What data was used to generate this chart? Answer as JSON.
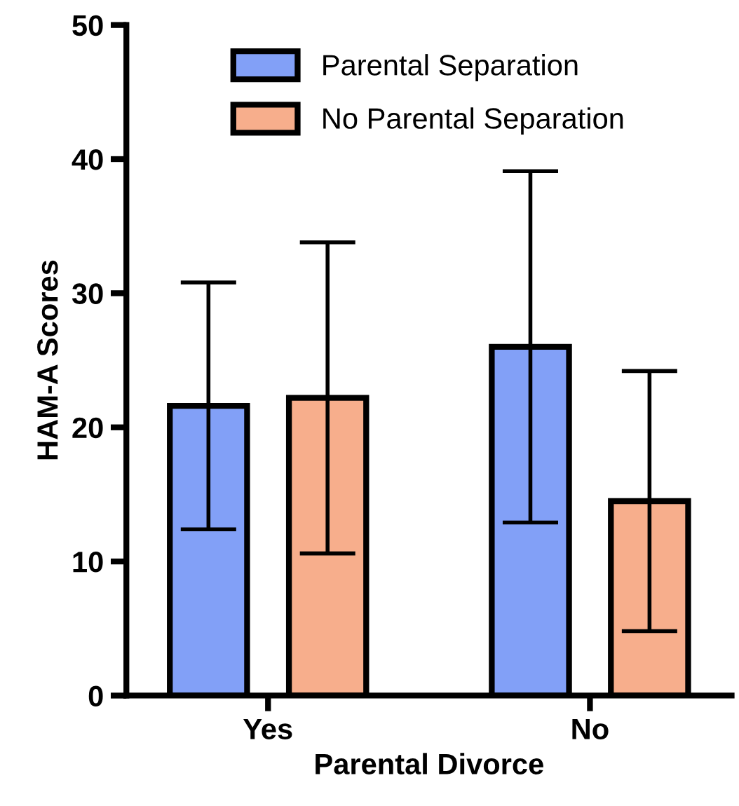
{
  "chart_data": {
    "type": "bar",
    "xlabel": "Parental Divorce",
    "ylabel": "HAM-A Scores",
    "categories": [
      "Yes",
      "No"
    ],
    "series": [
      {
        "name": "Parental Separation",
        "color": "#82a0f7",
        "values": [
          21.6,
          26.0
        ],
        "errors": [
          9.2,
          13.1
        ]
      },
      {
        "name": "No Parental Separation",
        "color": "#f7ae8c",
        "values": [
          22.2,
          14.5
        ],
        "errors": [
          11.6,
          9.7
        ]
      }
    ],
    "ylim": [
      0,
      50
    ],
    "yticks": [
      0,
      10,
      20,
      30,
      40,
      50
    ],
    "grid": false,
    "legend": "top"
  }
}
